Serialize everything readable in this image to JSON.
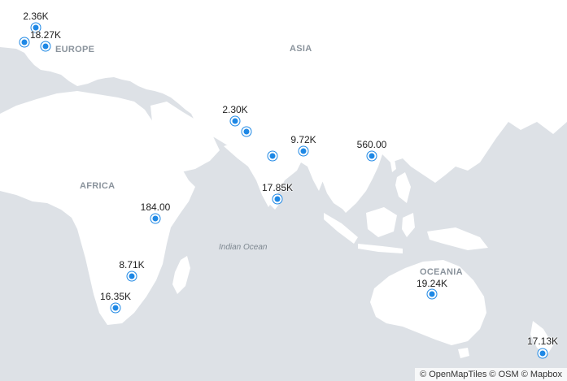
{
  "regions": {
    "europe": "EUROPE",
    "asia": "ASIA",
    "africa": "AFRICA",
    "oceania": "OCEANIA"
  },
  "oceans": {
    "indian": "Indian Ocean"
  },
  "markers": [
    {
      "label": "2.36K"
    },
    {
      "label": ""
    },
    {
      "label": "18.27K"
    },
    {
      "label": "2.30K"
    },
    {
      "label": ""
    },
    {
      "label": ""
    },
    {
      "label": "9.72K"
    },
    {
      "label": "560.00"
    },
    {
      "label": "17.85K"
    },
    {
      "label": "184.00"
    },
    {
      "label": "8.71K"
    },
    {
      "label": "16.35K"
    },
    {
      "label": "19.24K"
    },
    {
      "label": "17.13K"
    }
  ],
  "attribution": "© OpenMapTiles © OSM © Mapbox",
  "colors": {
    "water": "#dde1e6",
    "land": "#ffffff",
    "marker": "#1e88e5"
  }
}
